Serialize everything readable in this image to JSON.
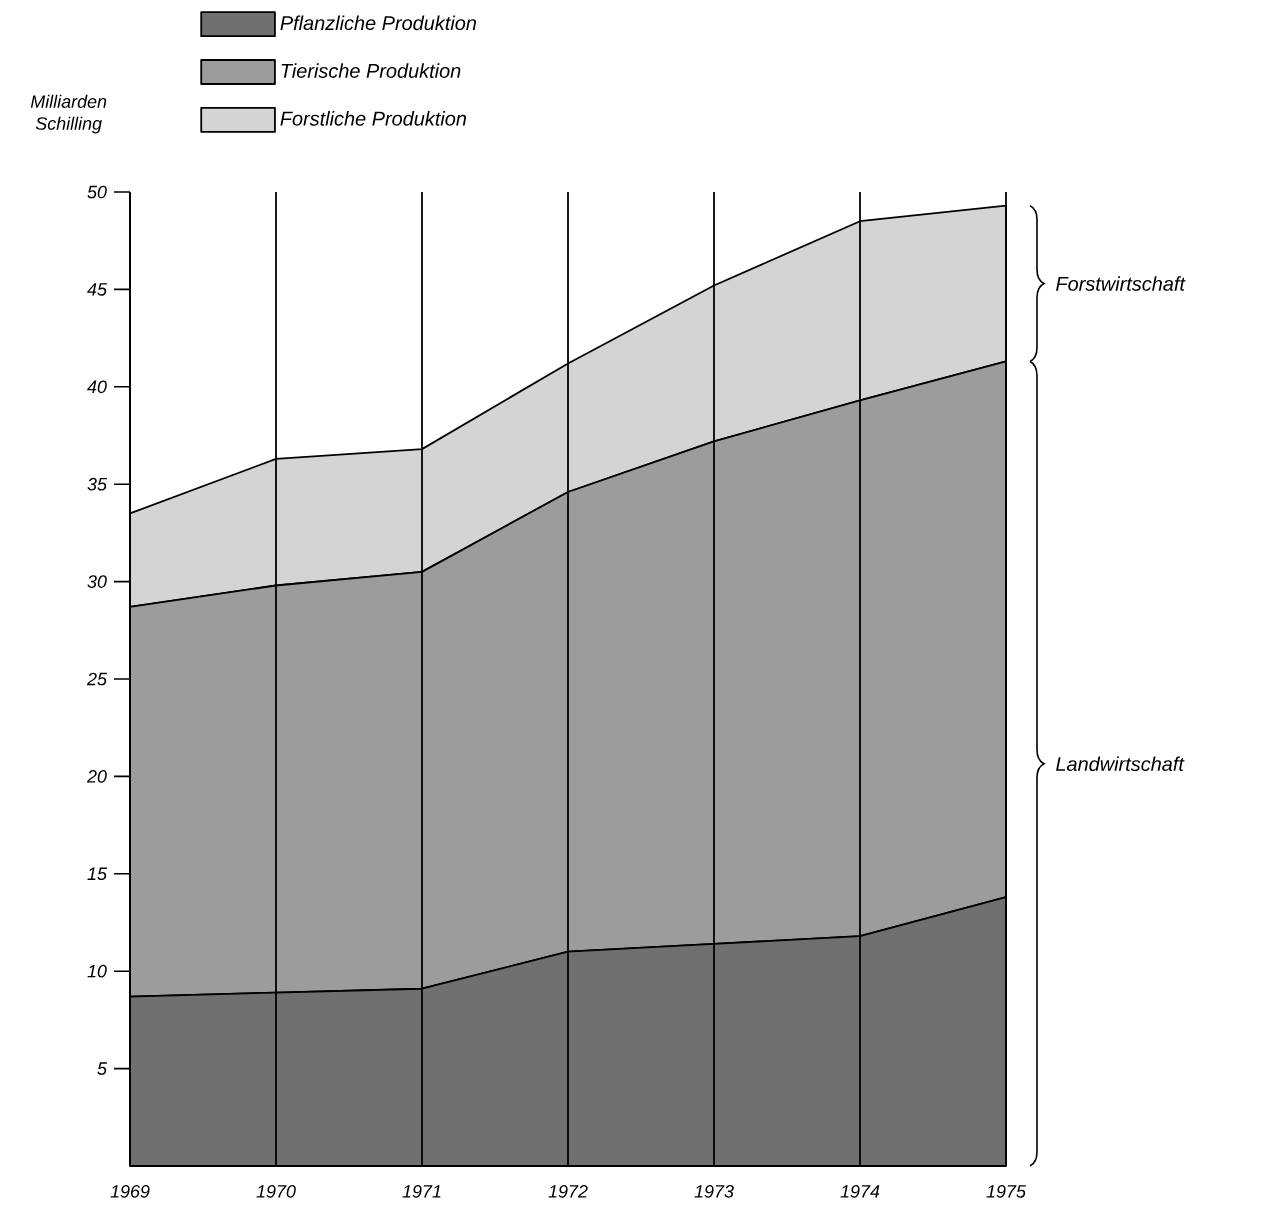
{
  "chart_data": {
    "type": "area",
    "stacked": true,
    "ylabel": "Milliarden Schilling",
    "categories": [
      "1969",
      "1970",
      "1971",
      "1972",
      "1973",
      "1974",
      "1975"
    ],
    "series": [
      {
        "name": "Pflanzliche Produktion",
        "color": "#707070",
        "values": [
          8.7,
          8.9,
          9.1,
          11.0,
          11.4,
          11.8,
          13.8
        ]
      },
      {
        "name": "Tierische Produktion",
        "color": "#9c9c9c",
        "values": [
          20.0,
          20.9,
          21.4,
          23.6,
          25.8,
          27.5,
          27.5
        ]
      },
      {
        "name": "Forstliche Produktion",
        "color": "#d4d4d4",
        "values": [
          4.8,
          6.5,
          6.3,
          6.6,
          8.0,
          9.2,
          8.0
        ]
      }
    ],
    "ylim": [
      0,
      50
    ],
    "yticks": [
      5,
      10,
      15,
      20,
      25,
      30,
      35,
      40,
      45,
      50
    ],
    "grid": "x",
    "legend": "top left",
    "annotations": [
      "Forstwirtschaft",
      "Landwirtschaft"
    ]
  }
}
